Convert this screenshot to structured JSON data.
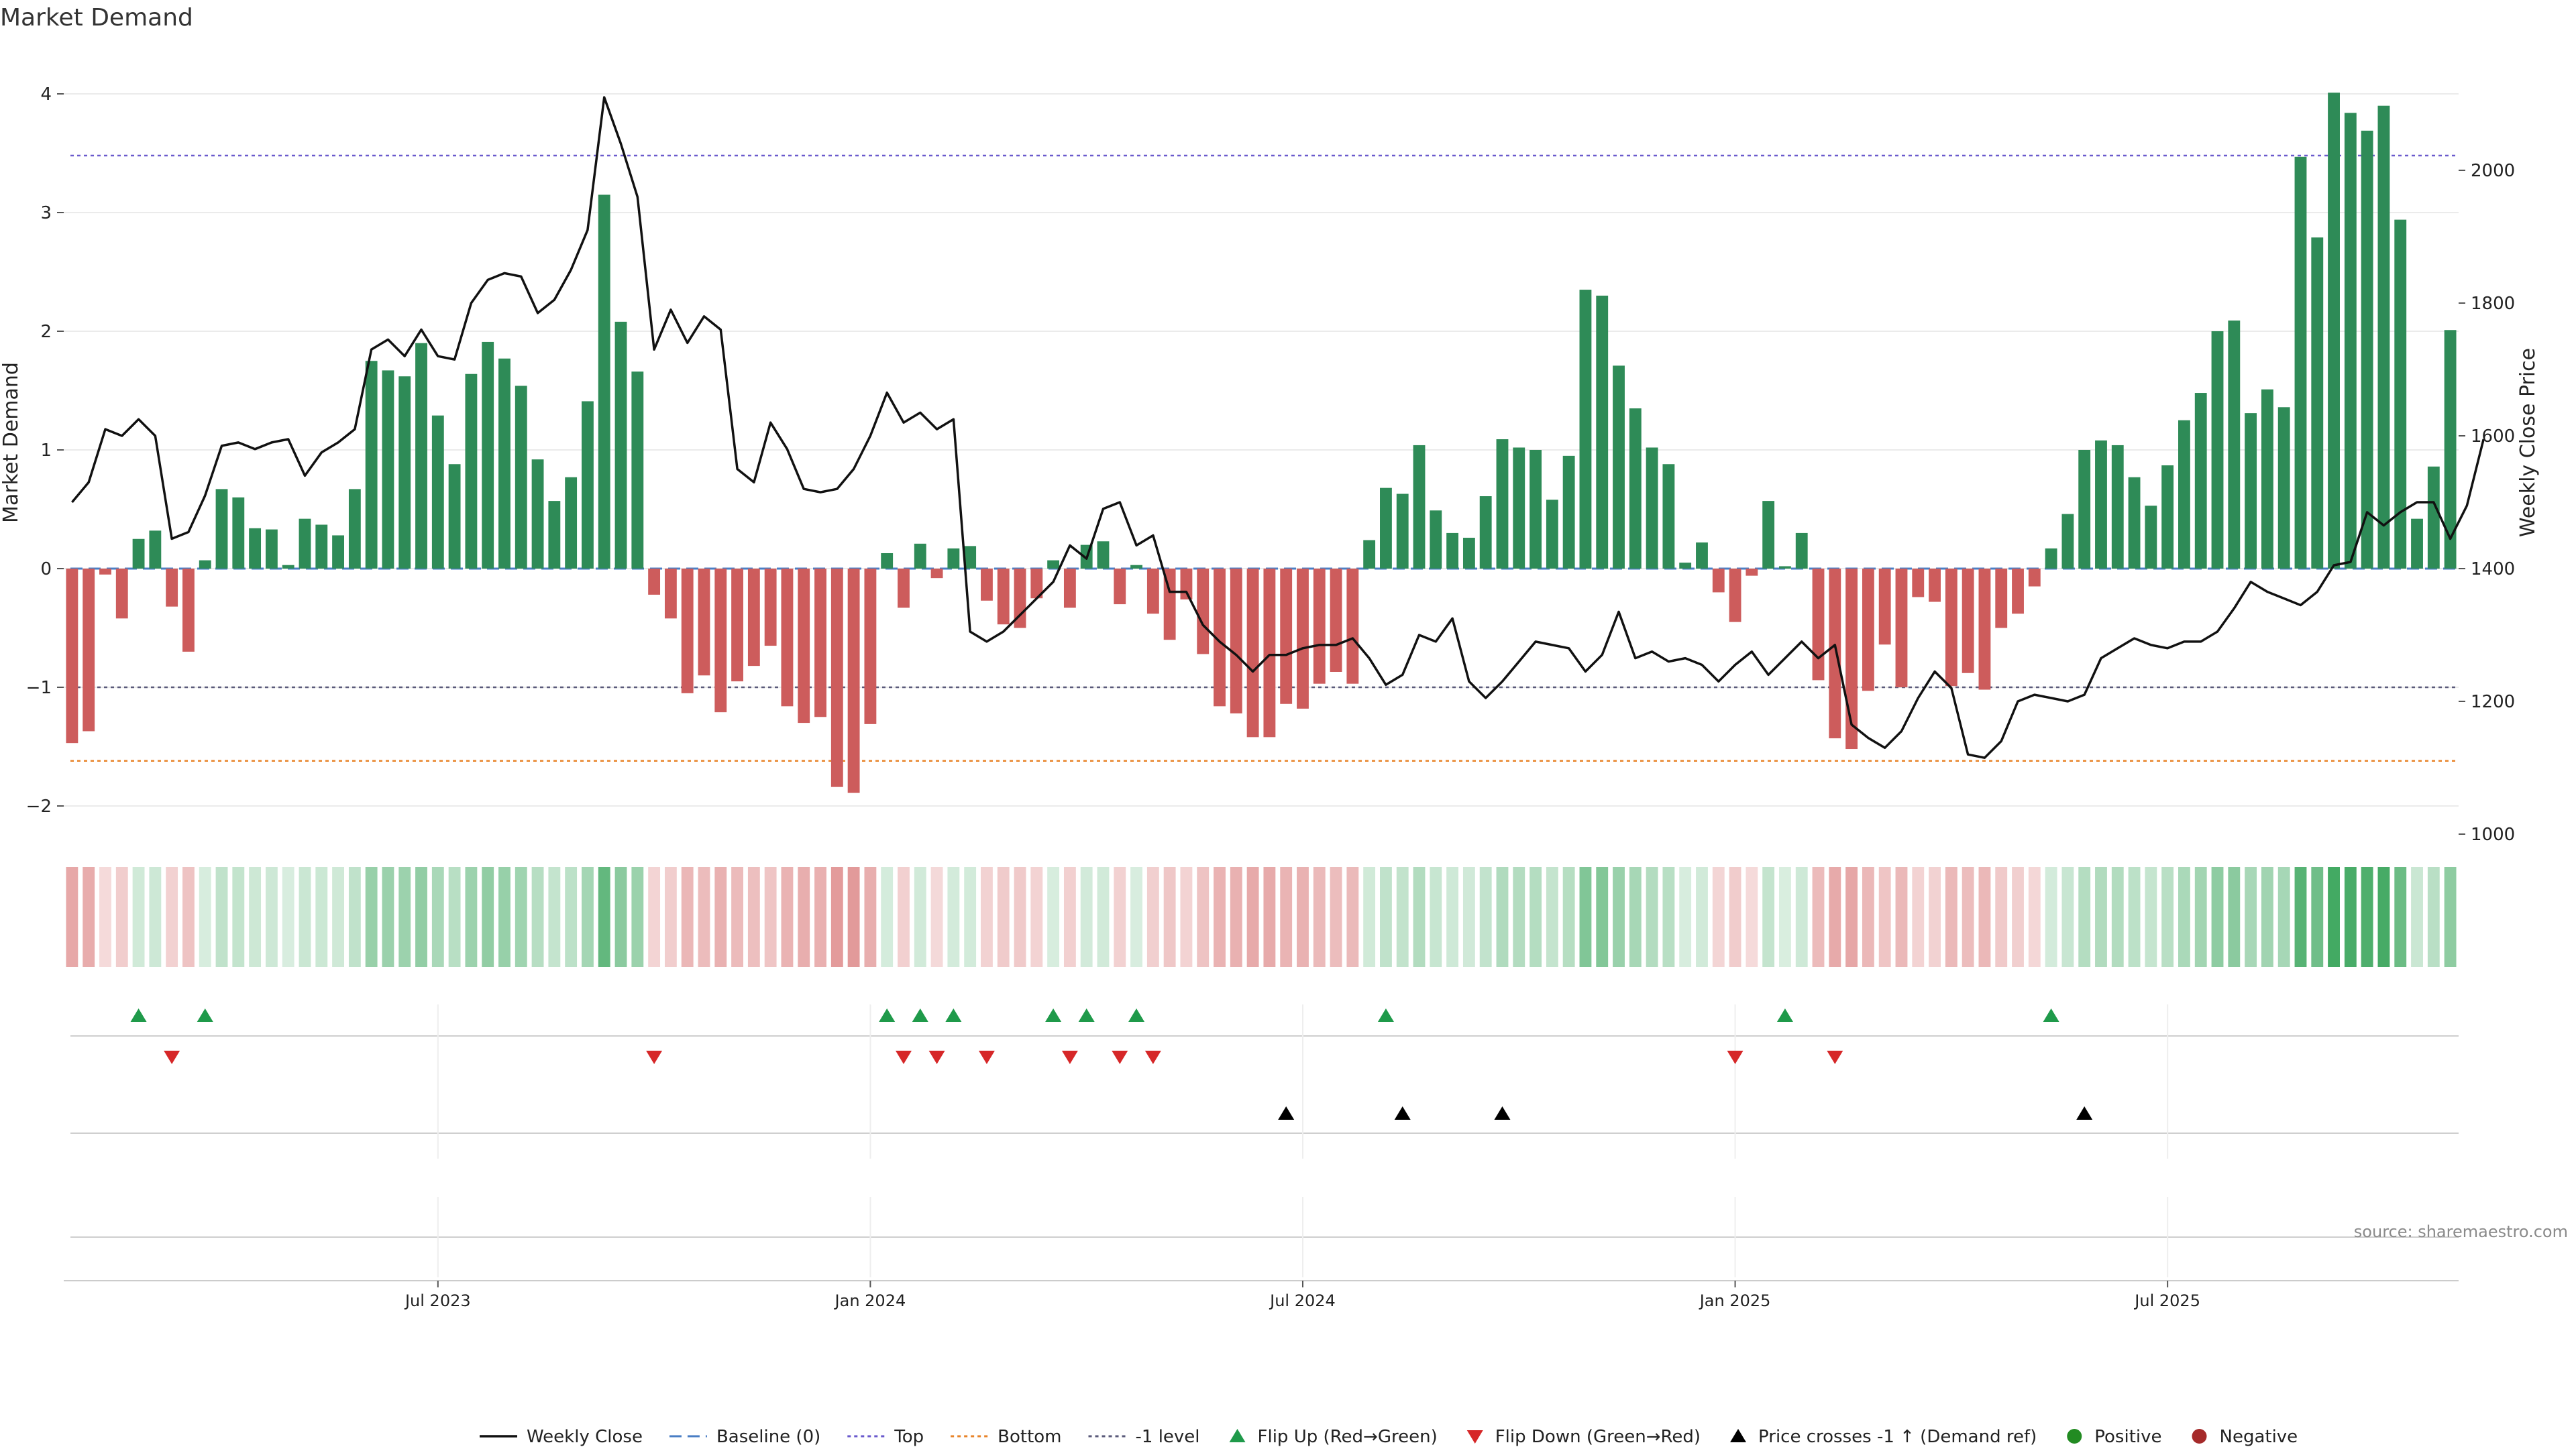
{
  "chart_data": {
    "type": "bar",
    "title": "Market Demand",
    "ylabel": "Market Demand",
    "y2label": "Weekly Close Price",
    "ylim": [
      -2.2,
      4.1
    ],
    "y2lim": [
      1000,
      2100
    ],
    "yticks": [
      {
        "value": 4,
        "label": "4"
      },
      {
        "value": 3,
        "label": "3"
      },
      {
        "value": 2,
        "label": "2"
      },
      {
        "value": 1,
        "label": "1"
      },
      {
        "value": 0,
        "label": "0"
      },
      {
        "value": -1,
        "label": "−1"
      },
      {
        "value": -2,
        "label": "−2"
      }
    ],
    "y2ticks": [
      {
        "value": 2000,
        "label": "2000"
      },
      {
        "value": 1800,
        "label": "1800"
      },
      {
        "value": 1600,
        "label": "1600"
      },
      {
        "value": 1400,
        "label": "1400"
      },
      {
        "value": 1200,
        "label": "1200"
      },
      {
        "value": 1000,
        "label": "1000"
      }
    ],
    "xticks": [
      {
        "week": 22,
        "label": "Jul 2023"
      },
      {
        "week": 48,
        "label": "Jan 2024"
      },
      {
        "week": 74,
        "label": "Jul 2024"
      },
      {
        "week": 100,
        "label": "Jan 2025"
      },
      {
        "week": 126,
        "label": "Jul 2025"
      }
    ],
    "reference_lines": {
      "baseline": 0,
      "top": 3.48,
      "bottom": -1.62,
      "minus_one": -1
    },
    "series": [
      {
        "name": "Market Demand",
        "values": [
          -1.47,
          -1.37,
          -0.05,
          -0.42,
          0.25,
          0.32,
          -0.32,
          -0.7,
          0.07,
          0.67,
          0.6,
          0.34,
          0.33,
          0.03,
          0.42,
          0.37,
          0.28,
          0.67,
          1.75,
          1.67,
          1.62,
          1.9,
          1.29,
          0.88,
          1.64,
          1.91,
          1.77,
          1.54,
          0.92,
          0.57,
          0.77,
          1.41,
          3.15,
          2.08,
          1.66,
          -0.22,
          -0.42,
          -1.05,
          -0.9,
          -1.21,
          -0.95,
          -0.82,
          -0.65,
          -1.16,
          -1.3,
          -1.25,
          -1.84,
          -1.89,
          -1.31,
          0.13,
          -0.33,
          0.21,
          -0.08,
          0.17,
          0.19,
          -0.27,
          -0.47,
          -0.5,
          -0.25,
          0.07,
          -0.33,
          0.2,
          0.23,
          -0.3,
          0.03,
          -0.38,
          -0.6,
          -0.26,
          -0.72,
          -1.16,
          -1.22,
          -1.42,
          -1.42,
          -1.14,
          -1.18,
          -0.97,
          -0.87,
          -0.97,
          0.24,
          0.68,
          0.63,
          1.04,
          0.49,
          0.3,
          0.26,
          0.61,
          1.09,
          1.02,
          1.0,
          0.58,
          0.95,
          2.35,
          2.3,
          1.71,
          1.35,
          1.02,
          0.88,
          0.05,
          0.22,
          -0.2,
          -0.45,
          -0.06,
          0.57,
          0.02,
          0.3,
          -0.94,
          -1.43,
          -1.52,
          -1.03,
          -0.64,
          -1.0,
          -0.24,
          -0.28,
          -0.99,
          -0.88,
          -1.02,
          -0.5,
          -0.38,
          -0.15,
          0.17,
          0.46,
          1.0,
          1.08,
          1.04,
          0.77,
          0.53,
          0.87,
          1.25,
          1.48,
          2.0,
          2.09,
          1.31,
          1.51,
          1.36,
          3.47,
          2.79,
          4.01,
          3.84,
          3.69,
          3.9,
          2.94,
          0.42,
          0.86,
          2.01
        ]
      },
      {
        "name": "Weekly Close",
        "values": [
          1500,
          1530,
          1610,
          1600,
          1625,
          1600,
          1445,
          1455,
          1510,
          1585,
          1590,
          1580,
          1590,
          1595,
          1540,
          1575,
          1590,
          1610,
          1730,
          1745,
          1720,
          1760,
          1720,
          1715,
          1800,
          1835,
          1845,
          1840,
          1785,
          1805,
          1850,
          1910,
          2110,
          2040,
          1960,
          1730,
          1790,
          1740,
          1780,
          1760,
          1550,
          1530,
          1620,
          1580,
          1520,
          1515,
          1520,
          1550,
          1600,
          1665,
          1620,
          1635,
          1610,
          1625,
          1305,
          1290,
          1305,
          1330,
          1355,
          1380,
          1435,
          1415,
          1490,
          1500,
          1435,
          1450,
          1365,
          1365,
          1315,
          1290,
          1270,
          1245,
          1270,
          1270,
          1280,
          1285,
          1285,
          1295,
          1265,
          1225,
          1240,
          1300,
          1290,
          1325,
          1230,
          1205,
          1230,
          1260,
          1290,
          1285,
          1280,
          1245,
          1270,
          1335,
          1265,
          1275,
          1260,
          1265,
          1255,
          1230,
          1255,
          1275,
          1240,
          1265,
          1290,
          1265,
          1285,
          1165,
          1145,
          1130,
          1155,
          1205,
          1245,
          1220,
          1120,
          1115,
          1140,
          1200,
          1210,
          1205,
          1200,
          1210,
          1265,
          1280,
          1295,
          1285,
          1280,
          1290,
          1290,
          1305,
          1340,
          1380,
          1365,
          1355,
          1345,
          1365,
          1405,
          1410,
          1485,
          1465,
          1485,
          1500,
          1500,
          1445,
          1495,
          1595
        ]
      }
    ],
    "flip_up_weeks": [
      4,
      8,
      49,
      51,
      53,
      59,
      61,
      64,
      79,
      103,
      119
    ],
    "flip_down_weeks": [
      6,
      35,
      50,
      52,
      55,
      60,
      63,
      65,
      100,
      106
    ],
    "price_cross_weeks": [
      73,
      80,
      86,
      121
    ],
    "legend": [
      {
        "key": "weekly-close",
        "label": "Weekly Close"
      },
      {
        "key": "baseline",
        "label": "Baseline (0)"
      },
      {
        "key": "top",
        "label": "Top"
      },
      {
        "key": "bottom",
        "label": "Bottom"
      },
      {
        "key": "minus-one",
        "label": "-1 level"
      },
      {
        "key": "flip-up",
        "label": "Flip Up (Red→Green)"
      },
      {
        "key": "flip-down",
        "label": "Flip Down (Green→Red)"
      },
      {
        "key": "price-cross",
        "label": "Price crosses -1 ↑ (Demand ref)"
      },
      {
        "key": "positive",
        "label": "Positive"
      },
      {
        "key": "negative",
        "label": "Negative"
      }
    ],
    "source": "source: sharemaestro.com",
    "colors": {
      "positive": "#2e8b57",
      "negative": "#cd5c5c",
      "price": "#111111",
      "baseline": "#4a7ec4",
      "top": "#6a5acd",
      "bottom": "#e8842a",
      "minus_one": "#5a5a7a",
      "flip_up": "#1f9a4a",
      "flip_down": "#d62728",
      "cross": "#000000",
      "positive_dot": "#228b22",
      "negative_dot": "#a52a2a"
    }
  }
}
